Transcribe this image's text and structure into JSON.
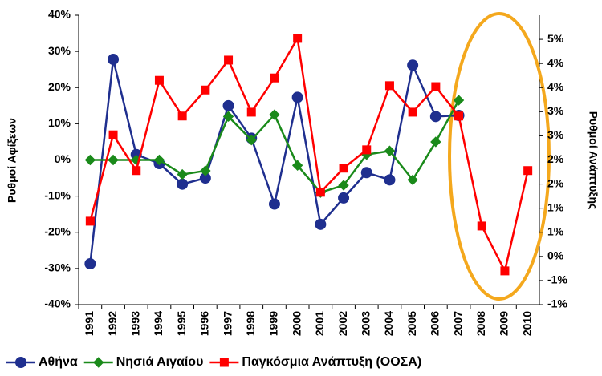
{
  "chart_data": {
    "type": "line",
    "y_label": "Ρυθμοί Αφίξεων",
    "y2_label": "Ρυθμοί Ανάπτυξης",
    "categories": [
      "1991",
      "1992",
      "1993",
      "1994",
      "1995",
      "1996",
      "1997",
      "1998",
      "1999",
      "2000",
      "2001",
      "2002",
      "2003",
      "2004",
      "2005",
      "2006",
      "2007",
      "2008",
      "2009",
      "2010"
    ],
    "series": [
      {
        "name": "Αθήνα",
        "color": "#1f2f8f",
        "marker": "circle",
        "values": [
          -28.7,
          27.8,
          1.5,
          -1,
          -6.7,
          -5,
          15,
          6,
          -12.2,
          17.3,
          -17.8,
          -10.5,
          -3.5,
          -5.5,
          26.2,
          12,
          12.3,
          null,
          null,
          null
        ]
      },
      {
        "name": "Νησιά Αιγαίου",
        "color": "#1a8a1a",
        "marker": "diamond",
        "values": [
          0,
          0,
          0,
          0,
          -4,
          -3,
          12,
          5.5,
          12.5,
          -1.5,
          -9,
          -7,
          1.5,
          2.5,
          -5.5,
          5,
          16.5,
          null,
          null,
          null
        ]
      },
      {
        "name": "Παγκόσμια Ανάπτυξη (ΟΟΣΑ)",
        "color": "#ff0000",
        "marker": "square",
        "axis": "y2",
        "values": [
          0.73,
          2.52,
          1.78,
          3.65,
          2.91,
          3.45,
          4.07,
          2.99,
          3.7,
          4.52,
          1.33,
          1.83,
          2.21,
          3.54,
          2.99,
          3.52,
          2.91,
          0.63,
          -0.3,
          1.78
        ]
      }
    ],
    "ylim": [
      -40,
      40
    ],
    "yticks": [
      {
        "value": -40,
        "label": "-40%"
      },
      {
        "value": -30,
        "label": "-30%"
      },
      {
        "value": -20,
        "label": "-20%"
      },
      {
        "value": -10,
        "label": "-10%"
      },
      {
        "value": 0,
        "label": "0%"
      },
      {
        "value": 10,
        "label": "10%"
      },
      {
        "value": 20,
        "label": "20%"
      },
      {
        "value": 30,
        "label": "30%"
      },
      {
        "value": 40,
        "label": "40%"
      }
    ],
    "y2lim": [
      -1,
      5
    ],
    "y2ticks": [
      {
        "value": -1,
        "label": "-1%"
      },
      {
        "value": -0.5,
        "label": "-1%"
      },
      {
        "value": 0,
        "label": "0%"
      },
      {
        "value": 0.5,
        "label": "1%"
      },
      {
        "value": 1,
        "label": "1%"
      },
      {
        "value": 1.5,
        "label": "2%"
      },
      {
        "value": 2,
        "label": "2%"
      },
      {
        "value": 2.5,
        "label": "3%"
      },
      {
        "value": 3,
        "label": "3%"
      },
      {
        "value": 3.5,
        "label": "4%"
      },
      {
        "value": 4,
        "label": "4%"
      },
      {
        "value": 4.5,
        "label": "5%"
      }
    ],
    "grid": false,
    "legend": "bottom"
  }
}
